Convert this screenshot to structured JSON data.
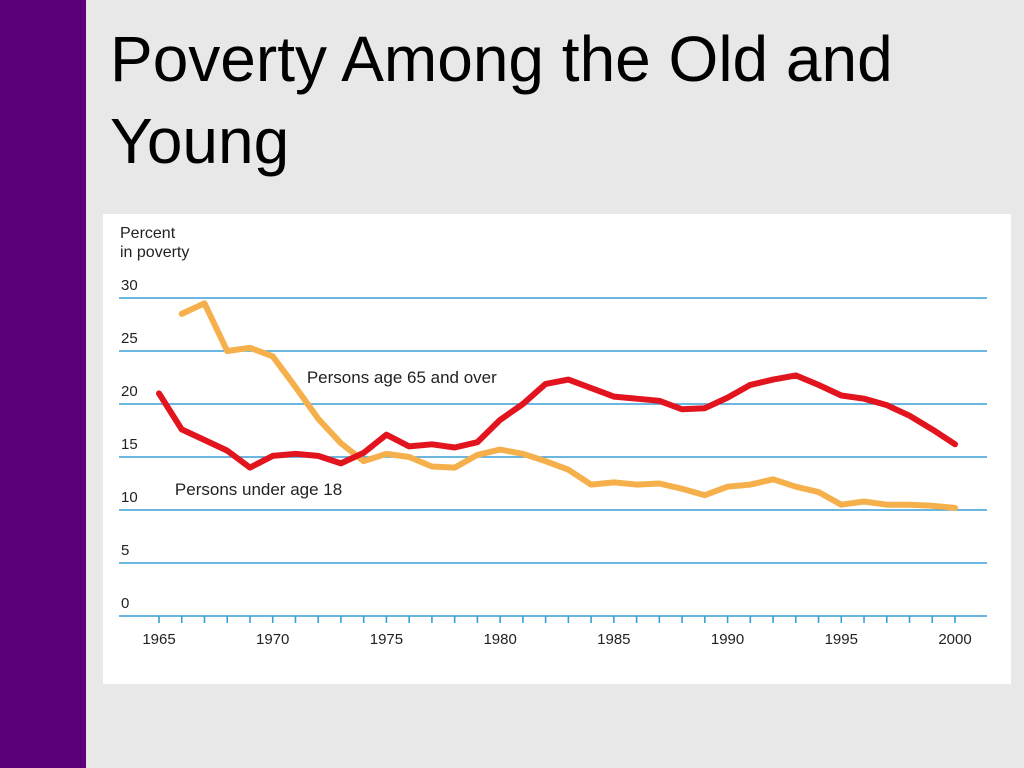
{
  "slide": {
    "title": "Poverty Among the Old and Young"
  },
  "colors": {
    "side_bar": "#5c0079",
    "gridline": "#3b9fd6",
    "series_65_and_over": "#f5b04c",
    "series_under_18": "#e2141e"
  },
  "chart_data": {
    "type": "line",
    "ylabel_lines": [
      "Percent",
      "in poverty"
    ],
    "xlabel": "",
    "xlim": [
      1965,
      2000
    ],
    "ylim": [
      0,
      30
    ],
    "y_ticks": [
      0,
      5,
      10,
      15,
      20,
      25,
      30
    ],
    "x_tick_labels": [
      1965,
      1970,
      1975,
      1980,
      1985,
      1990,
      1995,
      2000
    ],
    "x_minor_tick_step": 1,
    "grid": "horizontal",
    "series": [
      {
        "name": "Persons age 65 and over",
        "color": "#f5b04c",
        "x": [
          1966,
          1967,
          1968,
          1969,
          1970,
          1971,
          1972,
          1973,
          1974,
          1975,
          1976,
          1977,
          1978,
          1979,
          1980,
          1981,
          1982,
          1983,
          1984,
          1985,
          1986,
          1987,
          1988,
          1989,
          1990,
          1991,
          1992,
          1993,
          1994,
          1995,
          1996,
          1997,
          1998,
          1999,
          2000
        ],
        "y": [
          28.5,
          29.5,
          25.0,
          25.3,
          24.5,
          21.6,
          18.6,
          16.3,
          14.6,
          15.3,
          15.0,
          14.1,
          14.0,
          15.2,
          15.7,
          15.3,
          14.6,
          13.8,
          12.4,
          12.6,
          12.4,
          12.5,
          12.0,
          11.4,
          12.2,
          12.4,
          12.9,
          12.2,
          11.7,
          10.5,
          10.8,
          10.5,
          10.5,
          10.4,
          10.2
        ]
      },
      {
        "name": "Persons under age 18",
        "color": "#e2141e",
        "x": [
          1965,
          1966,
          1967,
          1968,
          1969,
          1970,
          1971,
          1972,
          1973,
          1974,
          1975,
          1976,
          1977,
          1978,
          1979,
          1980,
          1981,
          1982,
          1983,
          1984,
          1985,
          1986,
          1987,
          1988,
          1989,
          1990,
          1991,
          1992,
          1993,
          1994,
          1995,
          1996,
          1997,
          1998,
          1999,
          2000
        ],
        "y": [
          21.0,
          17.6,
          16.6,
          15.6,
          14.0,
          15.1,
          15.3,
          15.1,
          14.4,
          15.4,
          17.1,
          16.0,
          16.2,
          15.9,
          16.4,
          18.5,
          20.0,
          21.9,
          22.3,
          21.5,
          20.7,
          20.5,
          20.3,
          19.5,
          19.6,
          20.6,
          21.8,
          22.3,
          22.7,
          21.8,
          20.8,
          20.5,
          19.9,
          18.9,
          17.6,
          16.2
        ]
      }
    ],
    "annotations": [
      {
        "text": "Persons age 65 and over",
        "x": 1971.5,
        "y": 22.0
      },
      {
        "text": "Persons under age 18",
        "x": 1965.7,
        "y": 11.4
      }
    ]
  }
}
